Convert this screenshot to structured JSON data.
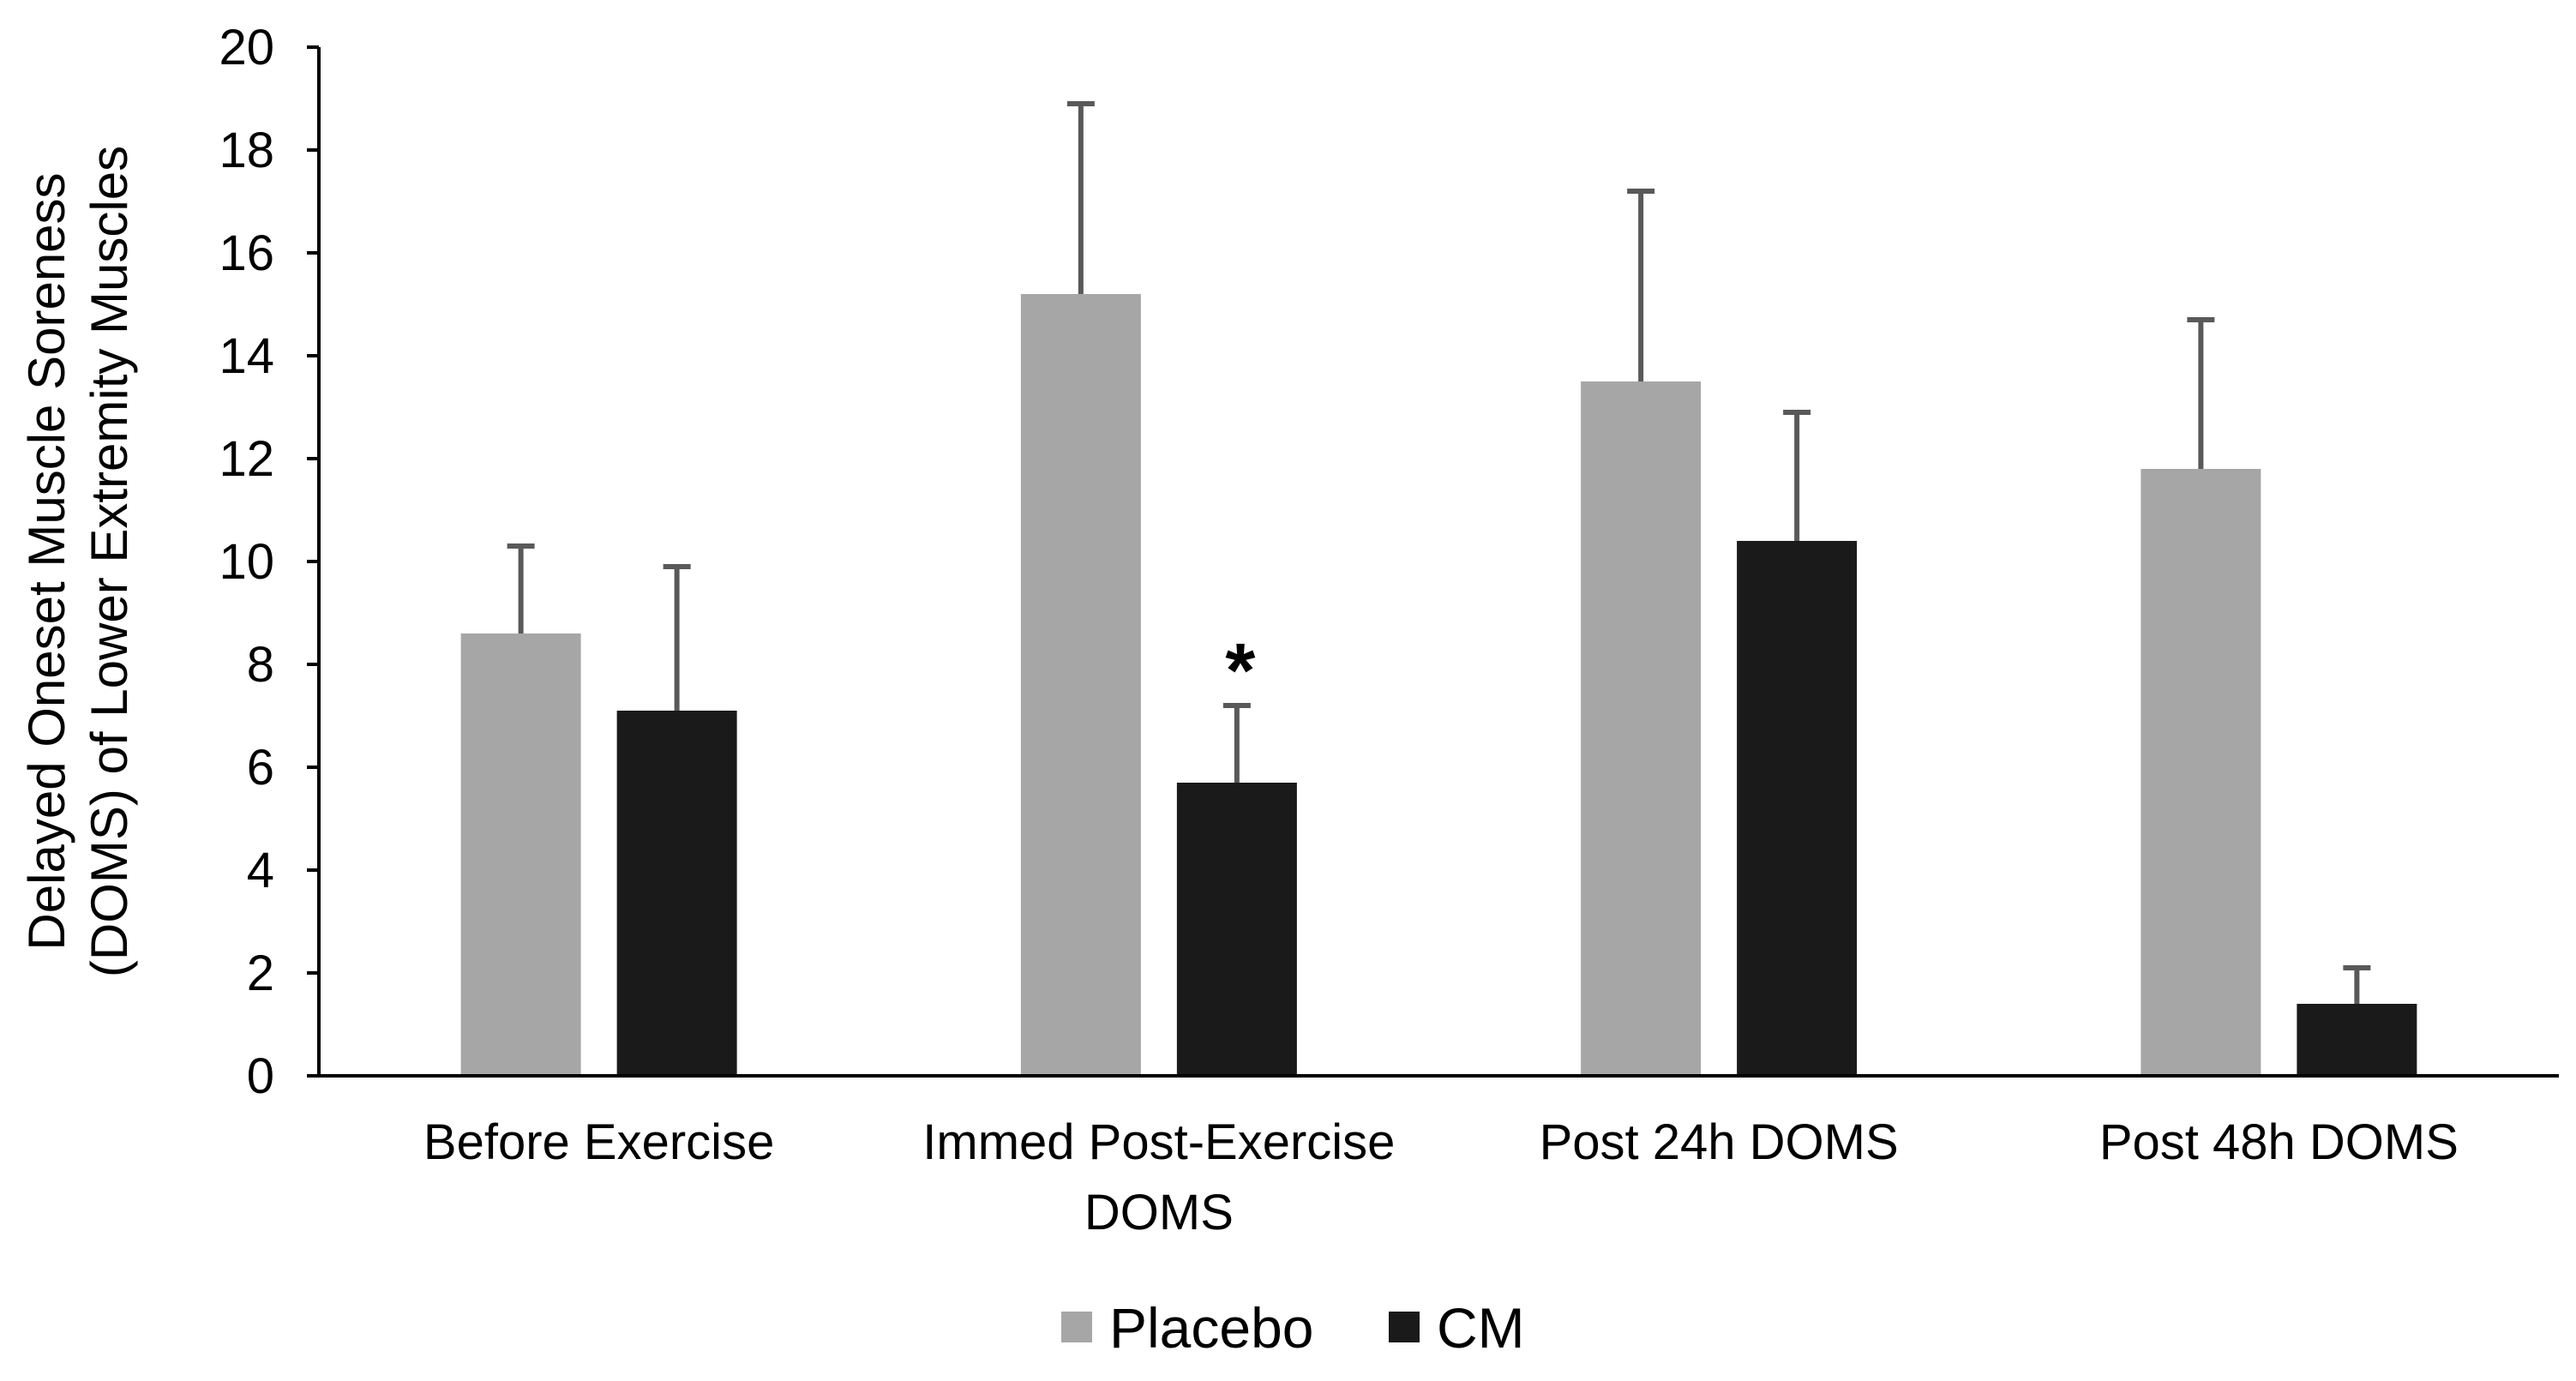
{
  "chart_data": {
    "type": "bar",
    "title": "",
    "xlabel": "",
    "ylabel": "Delayed Oneset Muscle Soreness (DOMS) of Lower Extremity Muscles",
    "ylabel_lines": [
      "Delayed Oneset Muscle Soreness",
      "(DOMS) of Lower Extremity Muscles"
    ],
    "ylim": [
      0,
      20
    ],
    "yticks": [
      "0",
      "2",
      "4",
      "6",
      "8",
      "10",
      "12",
      "14",
      "16",
      "18",
      "20"
    ],
    "categories": [
      "Before Exercise",
      "Immed Post-Exercise DOMS",
      "Post 24h DOMS",
      "Post 48h DOMS"
    ],
    "category_lines": [
      [
        "Before Exercise"
      ],
      [
        "Immed Post-Exercise",
        "DOMS"
      ],
      [
        "Post 24h DOMS"
      ],
      [
        "Post 48h DOMS"
      ]
    ],
    "series": [
      {
        "name": "Placebo",
        "color": "#a6a6a6",
        "values": [
          8.6,
          15.2,
          13.5,
          11.8
        ],
        "errors": [
          1.7,
          3.7,
          3.7,
          2.9
        ]
      },
      {
        "name": "CM",
        "color": "#1a1a1a",
        "values": [
          7.1,
          5.7,
          10.4,
          1.4
        ],
        "errors": [
          2.8,
          1.5,
          2.5,
          0.7
        ]
      }
    ],
    "annotations": [
      {
        "text": "*",
        "category": "Immed Post-Exercise DOMS",
        "series": "CM"
      }
    ],
    "legend": {
      "position": "bottom"
    },
    "grid": false
  }
}
